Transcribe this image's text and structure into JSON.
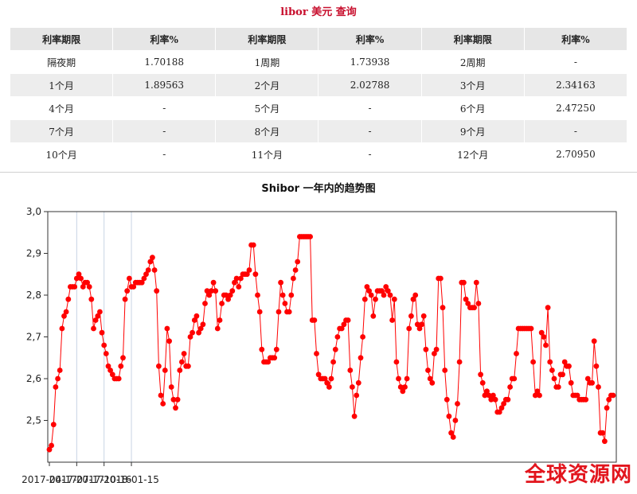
{
  "libor": {
    "title": "libor 美元 查询",
    "headers": [
      "利率期限",
      "利率%",
      "利率期限",
      "利率%",
      "利率期限",
      "利率%"
    ],
    "rows": [
      [
        "隔夜期",
        "1.70188",
        "1周期",
        "1.73938",
        "2周期",
        "-"
      ],
      [
        "1个月",
        "1.89563",
        "2个月",
        "2.02788",
        "3个月",
        "2.34163"
      ],
      [
        "4个月",
        "-",
        "5个月",
        "-",
        "6个月",
        "2.47250"
      ],
      [
        "7个月",
        "-",
        "8个月",
        "-",
        "9个月",
        "-"
      ],
      [
        "10个月",
        "-",
        "11个月",
        "-",
        "12个月",
        "2.70950"
      ]
    ]
  },
  "chart_data": {
    "type": "line",
    "title": "Shibor  一年内的趋势图",
    "xlabel": "",
    "ylabel": "",
    "ylim": [
      2.4,
      3.0
    ],
    "yticks": [
      "2,5",
      "2,6",
      "2,7",
      "2,8",
      "2,9",
      "3,0"
    ],
    "xticks": [
      "2017-04-17",
      "2017-07-17",
      "2017-10-16",
      "2018-01-15"
    ],
    "grid": "vertical",
    "series_color": "#ff0000",
    "start_date": "2017-04-17",
    "series": [
      {
        "values": [
          2.43,
          2.44,
          2.49,
          2.58,
          2.6,
          2.62,
          2.72,
          2.75,
          2.76,
          2.79,
          2.82,
          2.82,
          2.82,
          2.84,
          2.85,
          2.84,
          2.82,
          2.83,
          2.83,
          2.82,
          2.79,
          2.72,
          2.74,
          2.75,
          2.76,
          2.71,
          2.68,
          2.66,
          2.63,
          2.62,
          2.61,
          2.6,
          2.6,
          2.6,
          2.63,
          2.65,
          2.79,
          2.81,
          2.84,
          2.82,
          2.82,
          2.83,
          2.83,
          2.83,
          2.83,
          2.84,
          2.85,
          2.86,
          2.88,
          2.89,
          2.86,
          2.81,
          2.63,
          2.56,
          2.54,
          2.62,
          2.72,
          2.69,
          2.58,
          2.55,
          2.53,
          2.55,
          2.62,
          2.64,
          2.66,
          2.63,
          2.63,
          2.7,
          2.71,
          2.74,
          2.75,
          2.71,
          2.72,
          2.73,
          2.78,
          2.81,
          2.8,
          2.81,
          2.83,
          2.81,
          2.72,
          2.74,
          2.78,
          2.8,
          2.8,
          2.79,
          2.8,
          2.81,
          2.83,
          2.84,
          2.82,
          2.84,
          2.85,
          2.85,
          2.85,
          2.86,
          2.92,
          2.92,
          2.85,
          2.8,
          2.76,
          2.67,
          2.64,
          2.64,
          2.64,
          2.65,
          2.65,
          2.65,
          2.67,
          2.76,
          2.83,
          2.8,
          2.78,
          2.76,
          2.76,
          2.8,
          2.84,
          2.86,
          2.88,
          2.94,
          2.94,
          2.94,
          2.94,
          2.94,
          2.94,
          2.74,
          2.74,
          2.66,
          2.61,
          2.6,
          2.6,
          2.6,
          2.59,
          2.58,
          2.6,
          2.64,
          2.67,
          2.7,
          2.72,
          2.72,
          2.73,
          2.74,
          2.74,
          2.62,
          2.58,
          2.51,
          2.56,
          2.59,
          2.65,
          2.7,
          2.79,
          2.82,
          2.81,
          2.8,
          2.75,
          2.79,
          2.81,
          2.81,
          2.81,
          2.8,
          2.82,
          2.81,
          2.8,
          2.74,
          2.79,
          2.64,
          2.6,
          2.58,
          2.57,
          2.58,
          2.6,
          2.72,
          2.75,
          2.79,
          2.8,
          2.73,
          2.72,
          2.73,
          2.75,
          2.67,
          2.62,
          2.6,
          2.59,
          2.66,
          2.67,
          2.84,
          2.84,
          2.77,
          2.62,
          2.55,
          2.51,
          2.47,
          2.46,
          2.5,
          2.54,
          2.64,
          2.83,
          2.83,
          2.79,
          2.78,
          2.77,
          2.77,
          2.77,
          2.83,
          2.78,
          2.61,
          2.59,
          2.56,
          2.57,
          2.56,
          2.55,
          2.56,
          2.55,
          2.52,
          2.52,
          2.53,
          2.54,
          2.55,
          2.55,
          2.58,
          2.6,
          2.6,
          2.66,
          2.72,
          2.72,
          2.72,
          2.72,
          2.72,
          2.72,
          2.72,
          2.64,
          2.56,
          2.57,
          2.56,
          2.71,
          2.7,
          2.68,
          2.77,
          2.64,
          2.62,
          2.6,
          2.58,
          2.58,
          2.61,
          2.61,
          2.64,
          2.63,
          2.63,
          2.59,
          2.56,
          2.56,
          2.56,
          2.55,
          2.55,
          2.55,
          2.55,
          2.6,
          2.59,
          2.59,
          2.69,
          2.63,
          2.58,
          2.47,
          2.47,
          2.45,
          2.53,
          2.55,
          2.56,
          2.56
        ]
      }
    ]
  },
  "watermark": "全球资源网"
}
